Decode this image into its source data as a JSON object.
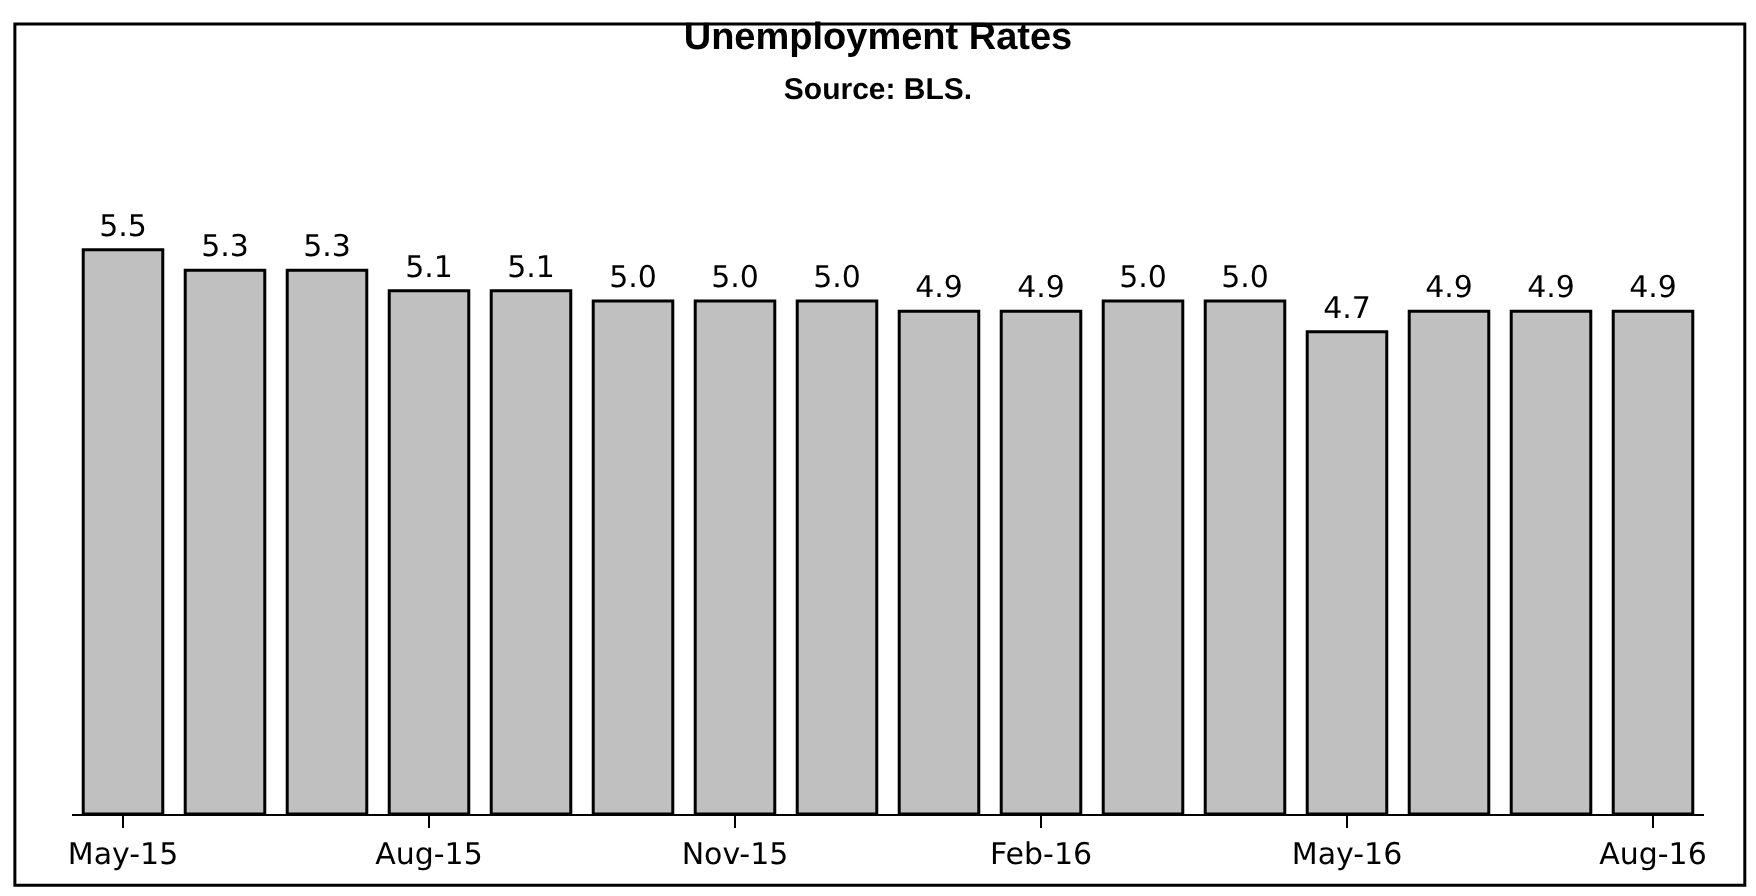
{
  "chart_data": {
    "type": "bar",
    "title": "Unemployment Rates",
    "subtitle": "Source: BLS.",
    "categories": [
      "May-15",
      null,
      null,
      "Aug-15",
      null,
      null,
      "Nov-15",
      null,
      null,
      "Feb-16",
      null,
      null,
      "May-16",
      null,
      null,
      "Aug-16"
    ],
    "values": [
      5.5,
      5.3,
      5.3,
      5.1,
      5.1,
      5.0,
      5.0,
      5.0,
      4.9,
      4.9,
      5.0,
      5.0,
      4.7,
      4.9,
      4.9,
      4.9
    ],
    "value_labels": [
      "5.5",
      "5.3",
      "5.3",
      "5.1",
      "5.1",
      "5.0",
      "5.0",
      "5.0",
      "4.9",
      "4.9",
      "5.0",
      "5.0",
      "4.7",
      "4.9",
      "4.9",
      "4.9"
    ],
    "color": "#c0c0c0",
    "tick_labels": "x"
  }
}
